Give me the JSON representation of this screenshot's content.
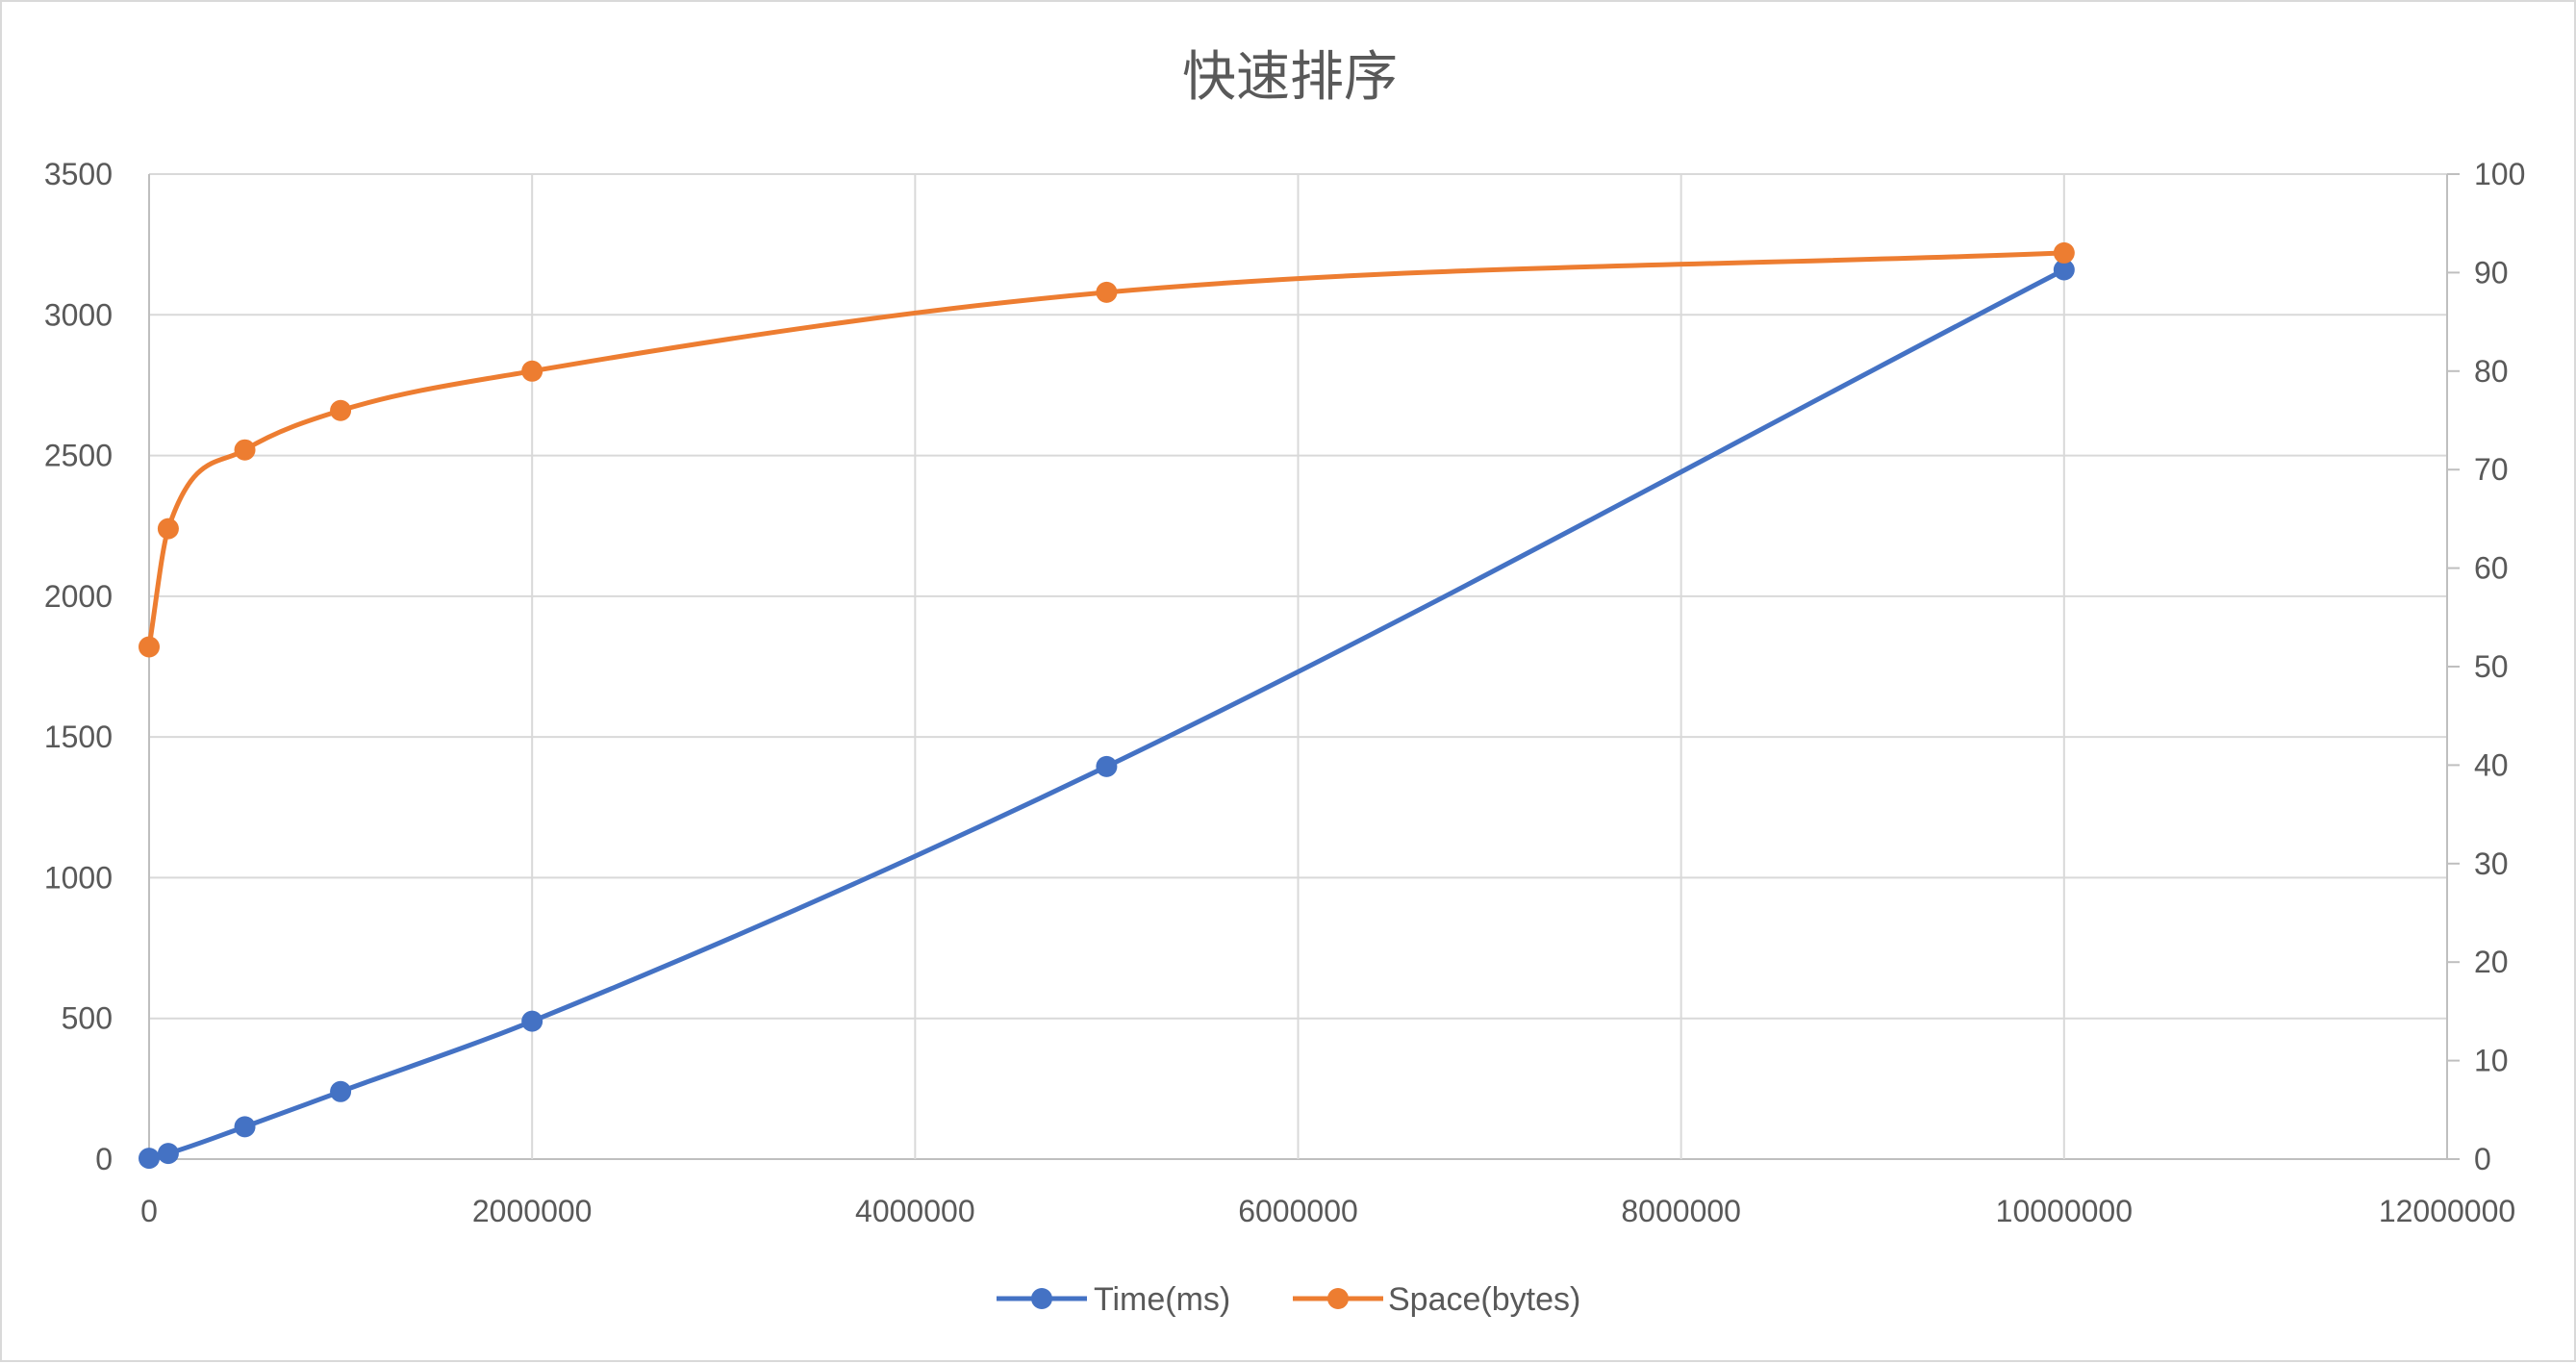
{
  "chart_data": {
    "type": "line",
    "title": "快速排序",
    "xlabel": "",
    "ylabel": "",
    "y2label": "",
    "x": [
      0,
      100000,
      500000,
      1000000,
      2000000,
      5000000,
      10000000
    ],
    "xlim": [
      0,
      12000000
    ],
    "xticks": [
      "0",
      "2000000",
      "4000000",
      "6000000",
      "8000000",
      "10000000",
      "12000000"
    ],
    "ylim": [
      0,
      3500
    ],
    "yticks": [
      "0",
      "500",
      "1000",
      "1500",
      "2000",
      "2500",
      "3000",
      "3500"
    ],
    "y2lim": [
      0,
      100
    ],
    "y2ticks": [
      "0",
      "10",
      "20",
      "30",
      "40",
      "50",
      "60",
      "70",
      "80",
      "90",
      "100"
    ],
    "grid": true,
    "smooth": true,
    "legend_position": "bottom",
    "series": [
      {
        "name": "Time(ms)",
        "axis": "left",
        "color": "#4472c4",
        "values": [
          3,
          20,
          115,
          240,
          490,
          1395,
          3160
        ]
      },
      {
        "name": "Space(bytes)",
        "axis": "right",
        "color": "#ed7d31",
        "values": [
          52,
          64,
          72,
          76,
          80,
          88,
          92
        ]
      }
    ]
  }
}
